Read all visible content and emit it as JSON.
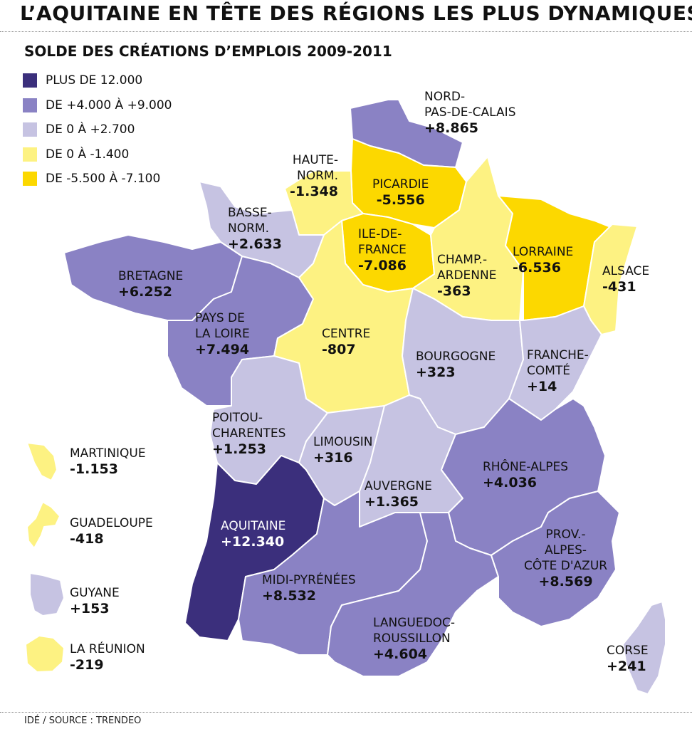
{
  "title": "L’AQUITAINE EN TÊTE DES RÉGIONS LES PLUS DYNAMIQUES",
  "subtitle": "SOLDE DES CRÉATIONS D’EMPLOIS 2009-2011",
  "source": "IDÉ / SOURCE : TRENDEO",
  "legend": [
    {
      "label": "PLUS DE 12.000",
      "color": "#3b2f7c"
    },
    {
      "label": "DE +4.000 À +9.000",
      "color": "#8a82c4"
    },
    {
      "label": "DE 0 À +2.700",
      "color": "#c6c3e2"
    },
    {
      "label": "DE  0 À -1.400",
      "color": "#fdf282"
    },
    {
      "label": "DE -5.500 À -7.100",
      "color": "#fcd800"
    }
  ],
  "regions": {
    "nord": {
      "name": "NORD-\nPAS-DE-CALAIS",
      "value": "+8.865"
    },
    "haute_norm": {
      "name": "HAUTE-\nNORM.",
      "value": "-1.348"
    },
    "picardie": {
      "name": "PICARDIE",
      "value": "-5.556"
    },
    "basse_norm": {
      "name": "BASSE-\nNORM.",
      "value": "+2.633"
    },
    "idf": {
      "name": "ILE-DE-\nFRANCE",
      "value": "-7.086"
    },
    "champagne": {
      "name": "CHAMP.-\nARDENNE",
      "value": "-363"
    },
    "lorraine": {
      "name": "LORRAINE",
      "value": "-6.536"
    },
    "alsace": {
      "name": "ALSACE",
      "value": "-431"
    },
    "bretagne": {
      "name": "BRETAGNE",
      "value": "+6.252"
    },
    "pays_loire": {
      "name": "PAYS DE\nLA LOIRE",
      "value": "+7.494"
    },
    "centre": {
      "name": "CENTRE",
      "value": "-807"
    },
    "bourgogne": {
      "name": "BOURGOGNE",
      "value": "+323"
    },
    "franche_comte": {
      "name": "FRANCHE-\nCOMTÉ",
      "value": "+14"
    },
    "poitou": {
      "name": "POITOU-\nCHARENTES",
      "value": "+1.253"
    },
    "limousin": {
      "name": "LIMOUSIN",
      "value": "+316"
    },
    "auvergne": {
      "name": "AUVERGNE",
      "value": "+1.365"
    },
    "rhone_alpes": {
      "name": "RHÔNE-ALPES",
      "value": "+4.036"
    },
    "aquitaine": {
      "name": "AQUITAINE",
      "value": "+12.340"
    },
    "midi_pyrenees": {
      "name": "MIDI-PYRÉNÉES",
      "value": "+8.532"
    },
    "paca": {
      "name": "PROV.-\nALPES-\nCÔTE D'AZUR",
      "value": "+8.569"
    },
    "languedoc": {
      "name": "LANGUEDOC-\nROUSSILLON",
      "value": "+4.604"
    },
    "corse": {
      "name": "CORSE",
      "value": "+241"
    },
    "martinique": {
      "name": "MARTINIQUE",
      "value": "-1.153"
    },
    "guadeloupe": {
      "name": "GUADELOUPE",
      "value": "-418"
    },
    "guyane": {
      "name": "GUYANE",
      "value": "+153"
    },
    "reunion": {
      "name": "LA RÉUNION",
      "value": "-219"
    }
  }
}
